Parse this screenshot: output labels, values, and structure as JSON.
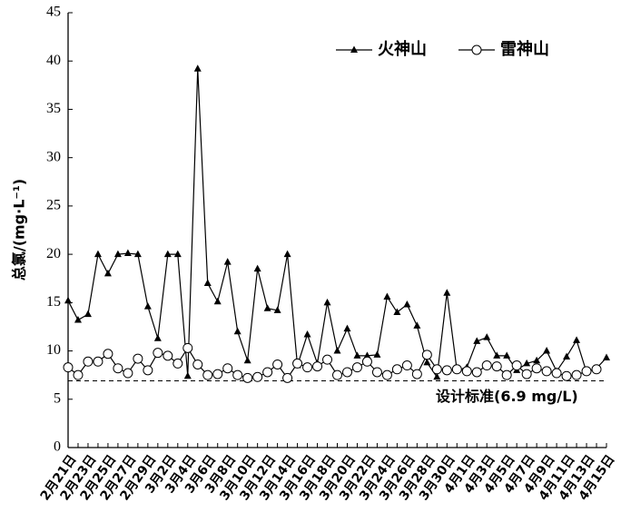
{
  "chart_data": {
    "type": "line",
    "ylabel": "总氯/(mg·L⁻¹)",
    "categories": [
      "2月21日",
      null,
      "2月23日",
      null,
      "2月25日",
      null,
      "2月27日",
      null,
      "2月29日",
      null,
      "3月2日",
      null,
      "3月4日",
      null,
      "3月6日",
      null,
      "3月8日",
      null,
      "3月10日",
      null,
      "3月12日",
      null,
      "3月14日",
      null,
      "3月16日",
      null,
      "3月18日",
      null,
      "3月20日",
      null,
      "3月22日",
      null,
      "3月24日",
      null,
      "3月26日",
      null,
      "3月28日",
      null,
      "3月30日",
      null,
      "4月1日",
      null,
      "4月3日",
      null,
      "4月5日",
      null,
      "4月7日",
      null,
      "4月9日",
      null,
      "4月11日",
      null,
      "4月13日",
      null,
      "4月15日"
    ],
    "series": [
      {
        "name": "火神山",
        "color": "#000000",
        "marker": "triangle",
        "values": [
          15.2,
          13.2,
          13.8,
          20.0,
          18.0,
          20.0,
          20.1,
          20.0,
          14.6,
          11.3,
          20.0,
          20.0,
          7.4,
          39.2,
          17.0,
          15.1,
          19.2,
          12.0,
          9.0,
          18.5,
          14.4,
          14.2,
          20.0,
          8.5,
          11.7,
          8.7,
          15.0,
          10.0,
          12.3,
          9.5,
          9.5,
          9.6,
          15.6,
          14.0,
          14.8,
          12.6,
          8.8,
          7.3,
          16.0,
          8.0,
          8.3,
          11.0,
          11.4,
          9.5,
          9.5,
          8.0,
          8.7,
          9.0,
          10.0,
          7.9,
          9.4,
          11.1,
          7.8,
          8.2,
          9.3
        ]
      },
      {
        "name": "雷神山",
        "color": "#000000",
        "marker": "circle",
        "values": [
          8.3,
          7.5,
          8.9,
          8.9,
          9.7,
          8.2,
          7.7,
          9.2,
          8.0,
          9.8,
          9.5,
          8.7,
          10.3,
          8.6,
          7.5,
          7.6,
          8.2,
          7.5,
          7.2,
          7.3,
          7.8,
          8.6,
          7.2,
          8.7,
          8.3,
          8.4,
          9.1,
          7.5,
          7.8,
          8.3,
          8.9,
          7.8,
          7.5,
          8.1,
          8.5,
          7.6,
          9.6,
          8.1,
          8.0,
          8.1,
          7.9,
          7.8,
          8.5,
          8.4,
          7.5,
          8.5,
          7.6,
          8.2,
          7.9,
          7.7,
          7.4,
          7.5,
          7.9,
          8.1,
          null
        ]
      }
    ],
    "reference_line": {
      "value": 6.9,
      "label": "设计标准(6.9 mg/L)"
    },
    "ylim": [
      0,
      45
    ],
    "yticks": [
      0,
      5,
      10,
      15,
      20,
      25,
      30,
      35,
      40,
      45
    ],
    "grid": false,
    "legend_position": "upper right"
  }
}
